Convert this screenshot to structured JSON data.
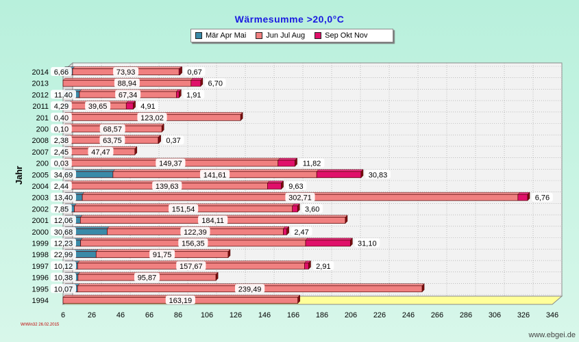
{
  "chart_data": {
    "type": "bar",
    "orientation": "horizontal",
    "stacked": true,
    "title": "Wärmesumme  >20,0°C",
    "xlabel": "",
    "ylabel": "Jahr",
    "xlim": [
      6,
      346
    ],
    "x_ticks": [
      6,
      26,
      46,
      66,
      86,
      106,
      126,
      146,
      166,
      186,
      206,
      226,
      246,
      266,
      286,
      306,
      326,
      346
    ],
    "grid": true,
    "legend_position": "top-center",
    "categories": [
      "2014",
      "2013",
      "2012",
      "2011",
      "201",
      "200",
      "2008",
      "2007",
      "200",
      "2005",
      "2004",
      "2003",
      "2002",
      "2001",
      "2000",
      "1999",
      "1998",
      "1997",
      "1996",
      "1995",
      "1994"
    ],
    "series": [
      {
        "name": "Mär Apr Mai",
        "color": "#3a8aa8",
        "values": [
          6.66,
          0,
          11.4,
          4.29,
          0.4,
          0.1,
          2.38,
          2.45,
          0.03,
          34.69,
          2.44,
          13.4,
          7.85,
          12.06,
          30.68,
          12.23,
          22.99,
          10.12,
          10.38,
          10.07,
          0
        ],
        "labels": [
          "6,66",
          "",
          "11,40",
          "4,29",
          "0,40",
          "0,10",
          "2,38",
          "2,45",
          "0,03",
          "34,69",
          "2,44",
          "13,40",
          "7,85",
          "12,06",
          "30,68",
          "12,23",
          "22,99",
          "10,12",
          "10,38",
          "10,07",
          ""
        ]
      },
      {
        "name": "Jun Jul Aug",
        "color": "#f08080",
        "values": [
          73.93,
          88.94,
          67.34,
          39.65,
          123.02,
          68.57,
          63.75,
          47.47,
          149.37,
          141.61,
          139.63,
          302.71,
          151.54,
          184.11,
          122.39,
          156.35,
          91.75,
          157.67,
          95.87,
          239.49,
          163.19
        ],
        "labels": [
          "73,93",
          "88,94",
          "67,34",
          "39,65",
          "123,02",
          "68,57",
          "63,75",
          "47,47",
          "149,37",
          "141,61",
          "139,63",
          "302,71",
          "151,54",
          "184,11",
          "122,39",
          "156,35",
          "91,75",
          "157,67",
          "95,87",
          "239,49",
          "163,19"
        ]
      },
      {
        "name": "Sep Okt Nov",
        "color": "#e0106a",
        "values": [
          0.67,
          6.7,
          1.91,
          4.91,
          0,
          0,
          0.37,
          0,
          11.82,
          30.83,
          9.63,
          6.76,
          3.6,
          0,
          2.47,
          31.1,
          0,
          2.91,
          0,
          0,
          0
        ],
        "labels": [
          "0,67",
          "6,70",
          "1,91",
          "4,91",
          "",
          "",
          "0,37",
          "",
          "11,82",
          "30,83",
          "9,63",
          "6,76",
          "3,60",
          "",
          "2,47",
          "31,10",
          "",
          "2,91",
          "",
          "",
          ""
        ]
      }
    ]
  },
  "footer": {
    "left": "WrWin32  26.02.2015",
    "right": "www.ebgei.de"
  }
}
